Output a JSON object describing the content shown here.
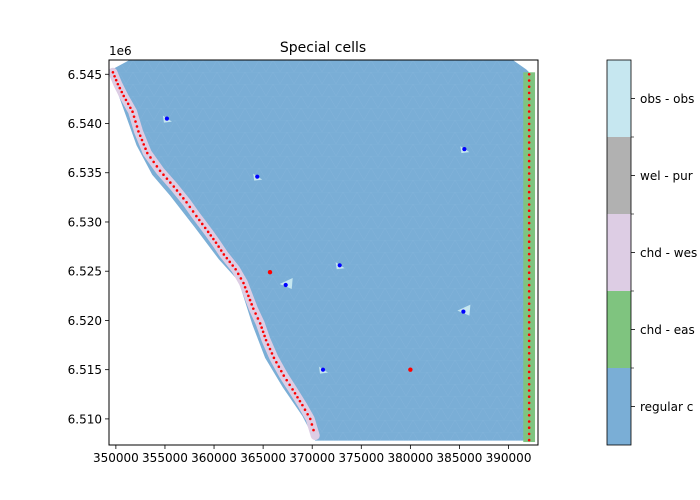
{
  "chart_data": {
    "type": "heatmap",
    "title": "Special cells",
    "xlabel": "",
    "ylabel": "",
    "y_offset_label": "1e6",
    "xlim": [
      349300,
      393000
    ],
    "ylim": [
      6.50735,
      6.54645
    ],
    "x_ticks": [
      350000,
      355000,
      360000,
      365000,
      370000,
      375000,
      380000,
      385000,
      390000
    ],
    "x_tick_labels": [
      "350000",
      "355000",
      "360000",
      "365000",
      "370000",
      "375000",
      "380000",
      "385000",
      "390000"
    ],
    "y_ticks": [
      6.51,
      6.515,
      6.52,
      6.525,
      6.53,
      6.535,
      6.54,
      6.545
    ],
    "y_tick_labels": [
      "6.510",
      "6.515",
      "6.520",
      "6.525",
      "6.530",
      "6.535",
      "6.540",
      "6.545"
    ],
    "grid": false,
    "colorbar": {
      "categories": [
        {
          "label": "regular c",
          "color": "#7aaed6"
        },
        {
          "label": "chd - eas",
          "color": "#7fc47f"
        },
        {
          "label": "chd - wes",
          "color": "#ddcde4"
        },
        {
          "label": "wel - pur",
          "color": "#b1b1b1"
        },
        {
          "label": "obs - obs",
          "color": "#c6e7f0"
        }
      ]
    },
    "domain_polygon": [
      [
        349450,
        6.5454
      ],
      [
        351300,
        6.5464
      ],
      [
        390500,
        6.5464
      ],
      [
        391800,
        6.5455
      ],
      [
        392300,
        6.545
      ],
      [
        392400,
        6.5078
      ],
      [
        370300,
        6.5078
      ],
      [
        369000,
        6.5103
      ],
      [
        367000,
        6.5132
      ],
      [
        365200,
        6.5162
      ],
      [
        363900,
        6.5196
      ],
      [
        362500,
        6.524
      ],
      [
        360500,
        6.5262
      ],
      [
        358000,
        6.5295
      ],
      [
        355500,
        6.5327
      ],
      [
        353700,
        6.5348
      ],
      [
        352100,
        6.5378
      ],
      [
        350300,
        6.5428
      ],
      [
        349400,
        6.545
      ]
    ],
    "east_chd_strip": {
      "x": [
        391500,
        392700
      ],
      "y": [
        6.50765,
        6.5452
      ]
    },
    "west_chd_boundary": [
      [
        349700,
        6.5452
      ],
      [
        350200,
        6.544
      ],
      [
        350800,
        6.5428
      ],
      [
        351700,
        6.5412
      ],
      [
        352300,
        6.5392
      ],
      [
        353200,
        6.537
      ],
      [
        354500,
        6.5352
      ],
      [
        355900,
        6.5336
      ],
      [
        357200,
        6.532
      ],
      [
        358200,
        6.5306
      ],
      [
        359400,
        6.529
      ],
      [
        360200,
        6.5279
      ],
      [
        361000,
        6.5267
      ],
      [
        362200,
        6.5252
      ],
      [
        363000,
        6.5238
      ],
      [
        363500,
        6.5225
      ],
      [
        364000,
        6.5212
      ],
      [
        364700,
        6.5197
      ],
      [
        365300,
        6.518
      ],
      [
        366100,
        6.5162
      ],
      [
        367100,
        6.5144
      ],
      [
        368000,
        6.513
      ],
      [
        369000,
        6.5114
      ],
      [
        369800,
        6.51
      ],
      [
        370300,
        6.5083
      ]
    ],
    "wells": [
      [
        355200,
        6.5405
      ],
      [
        364400,
        6.5346
      ],
      [
        372800,
        6.5256
      ],
      [
        385500,
        6.5374
      ],
      [
        371100,
        6.515
      ]
    ],
    "observation_points": [
      [
        367300,
        6.5236
      ],
      [
        385400,
        6.5209
      ]
    ],
    "special_red_points": [
      [
        365700,
        6.5249
      ],
      [
        380000,
        6.515
      ]
    ]
  }
}
